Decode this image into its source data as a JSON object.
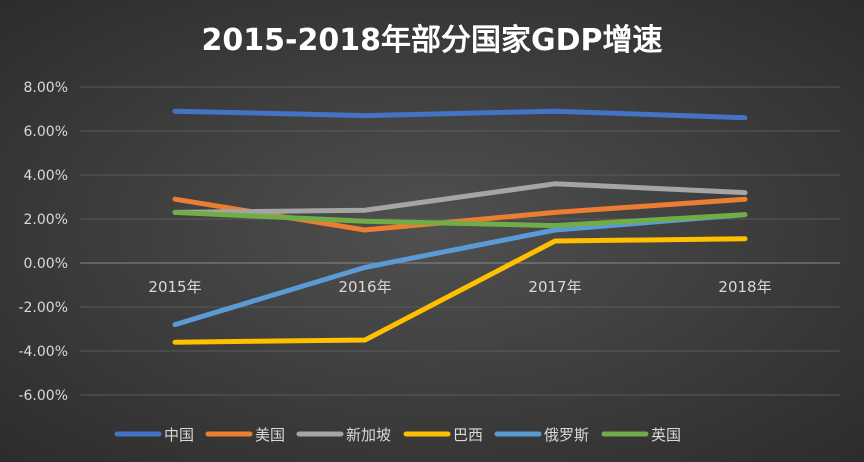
{
  "chart_data": {
    "type": "line",
    "title": "2015-2018年部分国家GDP增速",
    "categories": [
      "2015年",
      "2016年",
      "2017年",
      "2018年"
    ],
    "ylim": [
      -0.06,
      0.08
    ],
    "yticks": [
      "8.00%",
      "6.00%",
      "4.00%",
      "2.00%",
      "0.00%",
      "-2.00%",
      "-4.00%",
      "-6.00%"
    ],
    "grid": true,
    "legend_position": "bottom",
    "series": [
      {
        "name": "中国",
        "color": "#4472C4",
        "values": [
          0.069,
          0.067,
          0.069,
          0.066
        ]
      },
      {
        "name": "美国",
        "color": "#ED7D31",
        "values": [
          0.029,
          0.015,
          0.023,
          0.029
        ]
      },
      {
        "name": "新加坡",
        "color": "#A5A5A5",
        "values": [
          0.023,
          0.024,
          0.036,
          0.032
        ]
      },
      {
        "name": "巴西",
        "color": "#FFC000",
        "values": [
          -0.036,
          -0.035,
          0.01,
          0.011
        ]
      },
      {
        "name": "俄罗斯",
        "color": "#5B9BD5",
        "values": [
          -0.028,
          -0.002,
          0.015,
          0.022
        ]
      },
      {
        "name": "英国",
        "color": "#70AD47",
        "values": [
          0.023,
          0.019,
          0.017,
          0.022
        ]
      }
    ]
  }
}
